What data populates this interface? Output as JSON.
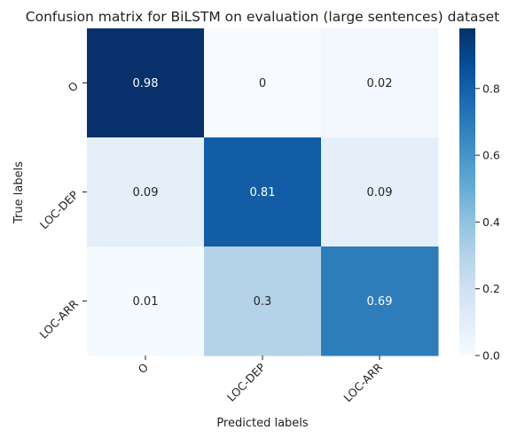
{
  "chart_data": {
    "type": "heatmap",
    "title": "Confusion matrix for BiLSTM on evaluation (large sentences) dataset",
    "xlabel": "Predicted labels",
    "ylabel": "True labels",
    "x_categories": [
      "O",
      "LOC-DEP",
      "LOC-ARR"
    ],
    "y_categories": [
      "O",
      "LOC-DEP",
      "LOC-ARR"
    ],
    "values": [
      [
        0.98,
        0,
        0.02
      ],
      [
        0.09,
        0.81,
        0.09
      ],
      [
        0.01,
        0.3,
        0.69
      ]
    ],
    "labels": [
      [
        "0.98",
        "0",
        "0.02"
      ],
      [
        "0.09",
        "0.81",
        "0.09"
      ],
      [
        "0.01",
        "0.3",
        "0.69"
      ]
    ],
    "colormap": "Blues",
    "colors": {
      "low": "#f7fbff",
      "high": "#08306b"
    },
    "colorbar": {
      "range": [
        0,
        0.98
      ],
      "ticks": [
        0,
        0.2,
        0.4,
        0.6,
        0.8
      ],
      "tick_labels": [
        "0.0",
        "0.2",
        "0.4",
        "0.6",
        "0.8"
      ]
    },
    "grid": false,
    "legend": "colorbar-right"
  }
}
